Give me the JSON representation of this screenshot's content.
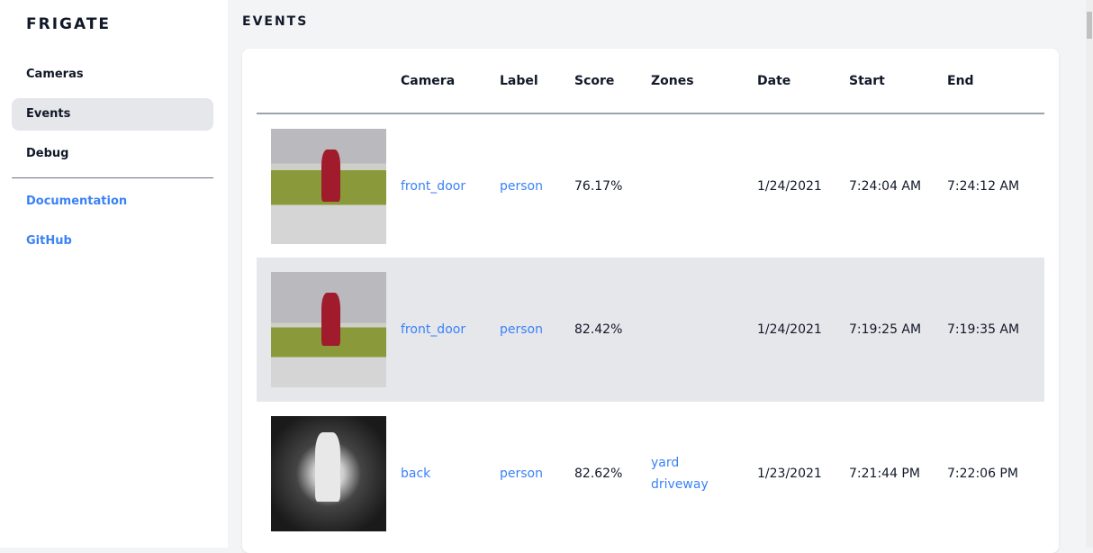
{
  "app": {
    "brand": "FRIGATE"
  },
  "sidebar": {
    "items": [
      {
        "label": "Cameras"
      },
      {
        "label": "Events",
        "active": true
      },
      {
        "label": "Debug"
      }
    ],
    "links": [
      {
        "label": "Documentation"
      },
      {
        "label": "GitHub"
      }
    ]
  },
  "page": {
    "title": "EVENTS"
  },
  "table": {
    "headers": [
      "",
      "Camera",
      "Label",
      "Score",
      "Zones",
      "Date",
      "Start",
      "End"
    ],
    "rows": [
      {
        "camera": "front_door",
        "label": "person",
        "score": "76.17%",
        "zones": [
          "",
          ""
        ],
        "date": "1/24/2021",
        "start": "7:24:04 AM",
        "end": "7:24:12 AM"
      },
      {
        "camera": "front_door",
        "label": "person",
        "score": "82.42%",
        "zones": [
          "",
          ""
        ],
        "date": "1/24/2021",
        "start": "7:19:25 AM",
        "end": "7:19:35 AM"
      },
      {
        "camera": "back",
        "label": "person",
        "score": "82.62%",
        "zones": [
          "yard",
          "driveway"
        ],
        "date": "1/23/2021",
        "start": "7:21:44 PM",
        "end": "7:22:06 PM"
      }
    ]
  },
  "colors": {
    "link": "#3b82f6",
    "active_bg": "#e5e7eb"
  }
}
